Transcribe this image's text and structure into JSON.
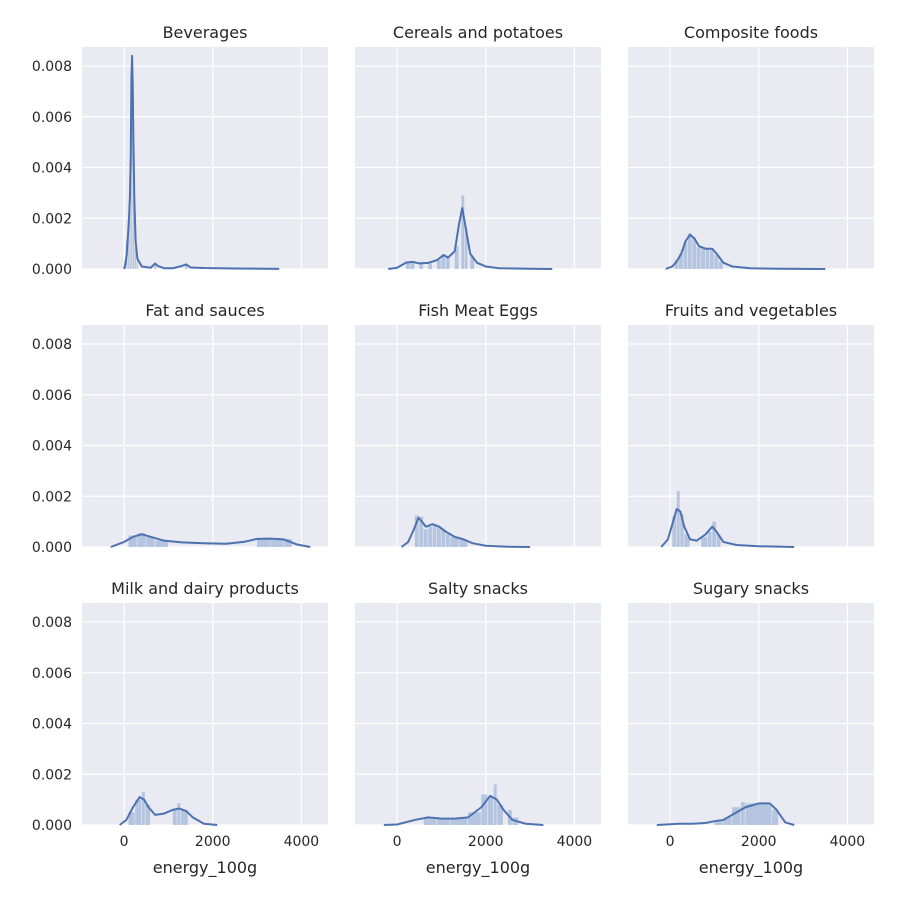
{
  "chart_data": {
    "type": "histogram-kde-facet-grid",
    "xlabel": "energy_100g",
    "ylabel": "",
    "x_ticks": [
      0,
      2000,
      4000
    ],
    "y_ticks": [
      0.0,
      0.002,
      0.004,
      0.006,
      0.008
    ],
    "y_tick_labels": [
      "0.000",
      "0.002",
      "0.004",
      "0.006",
      "0.008"
    ],
    "x_tick_labels": [
      "0",
      "2000",
      "4000"
    ],
    "grid": true,
    "colors": {
      "line": "#4c72b0",
      "hist": "#a8bbd9",
      "panel_bg": "#eaeaf2",
      "grid": "#ffffff"
    },
    "facets": [
      {
        "title": "Beverages",
        "xlim": [
          -950,
          4600
        ],
        "kde": [
          [
            0,
            0
          ],
          [
            30,
            0.0002
          ],
          [
            60,
            0.0006
          ],
          [
            90,
            0.0014
          ],
          [
            110,
            0.002
          ],
          [
            130,
            0.0028
          ],
          [
            150,
            0.0045
          ],
          [
            165,
            0.0075
          ],
          [
            180,
            0.0084
          ],
          [
            195,
            0.0072
          ],
          [
            210,
            0.005
          ],
          [
            230,
            0.0028
          ],
          [
            260,
            0.0011
          ],
          [
            300,
            0.0004
          ],
          [
            400,
            0.0001
          ],
          [
            600,
            5e-05
          ],
          [
            700,
            0.00022
          ],
          [
            760,
            0.00012
          ],
          [
            900,
            3e-05
          ],
          [
            1100,
            3e-05
          ],
          [
            1300,
            0.00012
          ],
          [
            1400,
            0.00018
          ],
          [
            1500,
            6e-05
          ],
          [
            1800,
            4e-05
          ],
          [
            2500,
            2e-05
          ],
          [
            3500,
            5e-06
          ]
        ],
        "hist": [
          [
            0,
            40,
            0.0003
          ],
          [
            40,
            80,
            0.0011
          ],
          [
            80,
            120,
            0.002
          ],
          [
            120,
            160,
            0.0029
          ],
          [
            160,
            200,
            0.0075
          ],
          [
            200,
            240,
            0.0028
          ],
          [
            240,
            280,
            0.0008
          ],
          [
            280,
            320,
            0.0003
          ],
          [
            680,
            740,
            0.00018
          ],
          [
            1380,
            1440,
            0.00014
          ]
        ]
      },
      {
        "title": "Cereals and potatoes",
        "xlim": [
          -950,
          4600
        ],
        "kde": [
          [
            -200,
            0
          ],
          [
            0,
            5e-05
          ],
          [
            200,
            0.00025
          ],
          [
            350,
            0.00028
          ],
          [
            500,
            0.00022
          ],
          [
            700,
            0.00024
          ],
          [
            900,
            0.00035
          ],
          [
            1050,
            0.00055
          ],
          [
            1150,
            0.00045
          ],
          [
            1300,
            0.0007
          ],
          [
            1400,
            0.0018
          ],
          [
            1470,
            0.0024
          ],
          [
            1550,
            0.0016
          ],
          [
            1650,
            0.0006
          ],
          [
            1800,
            0.00025
          ],
          [
            2000,
            0.0001
          ],
          [
            2300,
            3e-05
          ],
          [
            3000,
            1e-05
          ],
          [
            3500,
            0
          ]
        ],
        "hist": [
          [
            200,
            300,
            0.00022
          ],
          [
            300,
            400,
            0.00028
          ],
          [
            500,
            600,
            0.00022
          ],
          [
            700,
            800,
            0.00022
          ],
          [
            900,
            1000,
            0.00035
          ],
          [
            1000,
            1100,
            0.00058
          ],
          [
            1100,
            1200,
            0.00045
          ],
          [
            1300,
            1400,
            0.0009
          ],
          [
            1450,
            1530,
            0.0029
          ],
          [
            1530,
            1600,
            0.0016
          ],
          [
            1650,
            1750,
            0.0005
          ]
        ]
      },
      {
        "title": "Composite foods",
        "xlim": [
          -950,
          4600
        ],
        "kde": [
          [
            -100,
            0
          ],
          [
            50,
            0.0001
          ],
          [
            150,
            0.0003
          ],
          [
            250,
            0.0006
          ],
          [
            350,
            0.0011
          ],
          [
            450,
            0.00135
          ],
          [
            550,
            0.0012
          ],
          [
            650,
            0.0009
          ],
          [
            800,
            0.0008
          ],
          [
            950,
            0.0008
          ],
          [
            1050,
            0.0006
          ],
          [
            1200,
            0.00025
          ],
          [
            1400,
            0.0001
          ],
          [
            1800,
            3e-05
          ],
          [
            2500,
            1e-05
          ],
          [
            3500,
            0
          ]
        ],
        "hist": [
          [
            100,
            200,
            0.00035
          ],
          [
            200,
            300,
            0.0006
          ],
          [
            300,
            400,
            0.00105
          ],
          [
            400,
            500,
            0.0014
          ],
          [
            500,
            600,
            0.0012
          ],
          [
            600,
            700,
            0.00085
          ],
          [
            700,
            800,
            0.0008
          ],
          [
            800,
            900,
            0.0008
          ],
          [
            900,
            1000,
            0.00075
          ],
          [
            1000,
            1100,
            0.00055
          ],
          [
            1100,
            1200,
            0.0003
          ]
        ]
      },
      {
        "title": "Fat and sauces",
        "xlim": [
          -950,
          4600
        ],
        "kde": [
          [
            -300,
            0
          ],
          [
            0,
            0.0002
          ],
          [
            200,
            0.0004
          ],
          [
            400,
            0.0005
          ],
          [
            600,
            0.0004
          ],
          [
            900,
            0.00025
          ],
          [
            1300,
            0.00018
          ],
          [
            1800,
            0.00015
          ],
          [
            2300,
            0.00013
          ],
          [
            2700,
            0.0002
          ],
          [
            3000,
            0.00032
          ],
          [
            3300,
            0.00033
          ],
          [
            3600,
            0.0003
          ],
          [
            3900,
            0.0001
          ],
          [
            4200,
            0
          ]
        ],
        "hist": [
          [
            100,
            300,
            0.00045
          ],
          [
            300,
            500,
            0.00055
          ],
          [
            500,
            700,
            0.0004
          ],
          [
            700,
            1000,
            0.00025
          ],
          [
            3000,
            3300,
            0.0003
          ],
          [
            3300,
            3600,
            0.00033
          ],
          [
            3600,
            3800,
            0.00032
          ]
        ]
      },
      {
        "title": "Fish Meat Eggs",
        "xlim": [
          -950,
          4600
        ],
        "kde": [
          [
            100,
            0
          ],
          [
            250,
            0.0002
          ],
          [
            380,
            0.0007
          ],
          [
            480,
            0.00115
          ],
          [
            560,
            0.001
          ],
          [
            650,
            0.0008
          ],
          [
            800,
            0.0009
          ],
          [
            950,
            0.0008
          ],
          [
            1100,
            0.0006
          ],
          [
            1300,
            0.0004
          ],
          [
            1500,
            0.0003
          ],
          [
            1700,
            0.00015
          ],
          [
            2000,
            5e-05
          ],
          [
            2500,
            1e-05
          ],
          [
            3000,
            0
          ]
        ],
        "hist": [
          [
            400,
            500,
            0.00125
          ],
          [
            500,
            600,
            0.0012
          ],
          [
            600,
            700,
            0.0007
          ],
          [
            700,
            800,
            0.0008
          ],
          [
            800,
            900,
            0.0009
          ],
          [
            900,
            1000,
            0.0008
          ],
          [
            1000,
            1100,
            0.0007
          ],
          [
            1100,
            1200,
            0.0005
          ],
          [
            1200,
            1400,
            0.0004
          ],
          [
            1400,
            1600,
            0.0003
          ]
        ]
      },
      {
        "title": "Fruits and vegetables",
        "xlim": [
          -950,
          4600
        ],
        "kde": [
          [
            -200,
            0
          ],
          [
            -50,
            0.0003
          ],
          [
            50,
            0.0009
          ],
          [
            150,
            0.0015
          ],
          [
            230,
            0.0014
          ],
          [
            320,
            0.0008
          ],
          [
            450,
            0.0003
          ],
          [
            600,
            0.00025
          ],
          [
            800,
            0.0005
          ],
          [
            950,
            0.0008
          ],
          [
            1050,
            0.0006
          ],
          [
            1200,
            0.0002
          ],
          [
            1500,
            8e-05
          ],
          [
            2000,
            3e-05
          ],
          [
            2800,
            0
          ]
        ],
        "hist": [
          [
            50,
            150,
            0.0012
          ],
          [
            150,
            230,
            0.0022
          ],
          [
            230,
            320,
            0.0013
          ],
          [
            320,
            450,
            0.0005
          ],
          [
            700,
            850,
            0.0004
          ],
          [
            850,
            950,
            0.0006
          ],
          [
            950,
            1050,
            0.001
          ],
          [
            1050,
            1150,
            0.0005
          ]
        ]
      },
      {
        "title": "Milk and dairy products",
        "xlim": [
          -950,
          4600
        ],
        "kde": [
          [
            -100,
            0
          ],
          [
            50,
            0.0002
          ],
          [
            200,
            0.0007
          ],
          [
            350,
            0.0011
          ],
          [
            450,
            0.001
          ],
          [
            550,
            0.0007
          ],
          [
            700,
            0.0004
          ],
          [
            900,
            0.00045
          ],
          [
            1100,
            0.0006
          ],
          [
            1250,
            0.00065
          ],
          [
            1400,
            0.00055
          ],
          [
            1550,
            0.0003
          ],
          [
            1800,
            5e-05
          ],
          [
            2100,
            0
          ]
        ],
        "hist": [
          [
            100,
            250,
            0.0005
          ],
          [
            250,
            400,
            0.001
          ],
          [
            400,
            480,
            0.0013
          ],
          [
            480,
            600,
            0.0008
          ],
          [
            1100,
            1200,
            0.0006
          ],
          [
            1200,
            1280,
            0.00085
          ],
          [
            1280,
            1450,
            0.0006
          ]
        ]
      },
      {
        "title": "Salty snacks",
        "xlim": [
          -950,
          4600
        ],
        "kde": [
          [
            -300,
            0
          ],
          [
            0,
            2e-05
          ],
          [
            400,
            0.0002
          ],
          [
            700,
            0.0003
          ],
          [
            1000,
            0.00025
          ],
          [
            1300,
            0.00025
          ],
          [
            1600,
            0.0003
          ],
          [
            1900,
            0.0007
          ],
          [
            2100,
            0.00115
          ],
          [
            2250,
            0.001
          ],
          [
            2400,
            0.0006
          ],
          [
            2600,
            0.0002
          ],
          [
            2900,
            5e-05
          ],
          [
            3300,
            0
          ]
        ],
        "hist": [
          [
            600,
            900,
            0.0003
          ],
          [
            900,
            1200,
            0.00025
          ],
          [
            1200,
            1600,
            0.00028
          ],
          [
            1600,
            1900,
            0.0005
          ],
          [
            1900,
            2050,
            0.0012
          ],
          [
            2050,
            2180,
            0.0011
          ],
          [
            2180,
            2260,
            0.0016
          ],
          [
            2260,
            2400,
            0.0008
          ],
          [
            2500,
            2600,
            0.0006
          ],
          [
            2600,
            2750,
            0.0003
          ]
        ]
      },
      {
        "title": "Sugary snacks",
        "xlim": [
          -950,
          4600
        ],
        "kde": [
          [
            -300,
            0
          ],
          [
            200,
            5e-05
          ],
          [
            500,
            5e-05
          ],
          [
            800,
            8e-05
          ],
          [
            1000,
            0.00015
          ],
          [
            1200,
            0.0002
          ],
          [
            1400,
            0.0004
          ],
          [
            1700,
            0.0007
          ],
          [
            2000,
            0.00085
          ],
          [
            2250,
            0.00085
          ],
          [
            2400,
            0.0006
          ],
          [
            2600,
            0.0001
          ],
          [
            2800,
            0
          ]
        ],
        "hist": [
          [
            1000,
            1200,
            0.00015
          ],
          [
            1200,
            1400,
            0.0003
          ],
          [
            1400,
            1600,
            0.0007
          ],
          [
            1600,
            1700,
            0.0009
          ],
          [
            1700,
            2300,
            0.00085
          ],
          [
            2300,
            2450,
            0.0006
          ]
        ]
      }
    ]
  }
}
